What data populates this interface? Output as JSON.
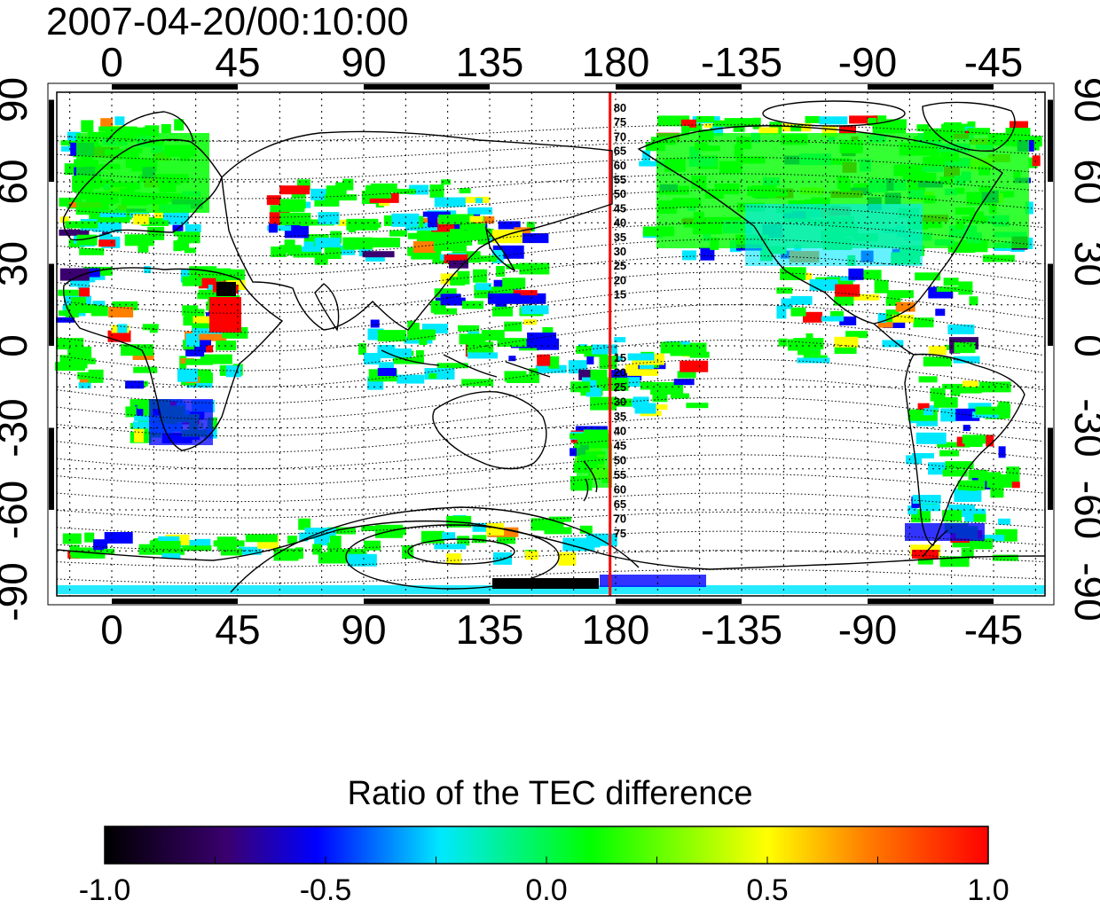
{
  "title": "2007-04-20/00:10:00",
  "map": {
    "top_lon_labels": [
      "0",
      "45",
      "90",
      "135",
      "180",
      "-135",
      "-90",
      "-45"
    ],
    "bottom_lon_labels": [
      "0",
      "45",
      "90",
      "135",
      "180",
      "-135",
      "-90",
      "-45"
    ],
    "left_lat_labels": [
      "90",
      "60",
      "30",
      "0",
      "-30",
      "-60",
      "-90"
    ],
    "right_lat_labels": [
      "90",
      "60",
      "30",
      "0",
      "-30",
      "-60",
      "-90"
    ],
    "meridian_line_color": "#ff0000",
    "meridian_lon": 178,
    "upper_contour_labels": [
      "80",
      "75",
      "70",
      "65",
      "60",
      "55",
      "50",
      "45",
      "40",
      "35",
      "30",
      "25",
      "20",
      "15"
    ],
    "lower_contour_labels": [
      "15",
      "20",
      "25",
      "30",
      "35",
      "40",
      "45",
      "50",
      "55",
      "60",
      "65",
      "70",
      "75"
    ]
  },
  "colorbar": {
    "title": "Ratio of the TEC difference",
    "tick_labels": [
      "-1.0",
      "-0.5",
      "0.0",
      "0.5",
      "1.0"
    ],
    "min": -1.0,
    "max": 1.0,
    "colors": [
      "#000000",
      "#3a0070",
      "#0000ff",
      "#00e8ff",
      "#00ff00",
      "#ffff00",
      "#ff8000",
      "#ff0000"
    ]
  }
}
